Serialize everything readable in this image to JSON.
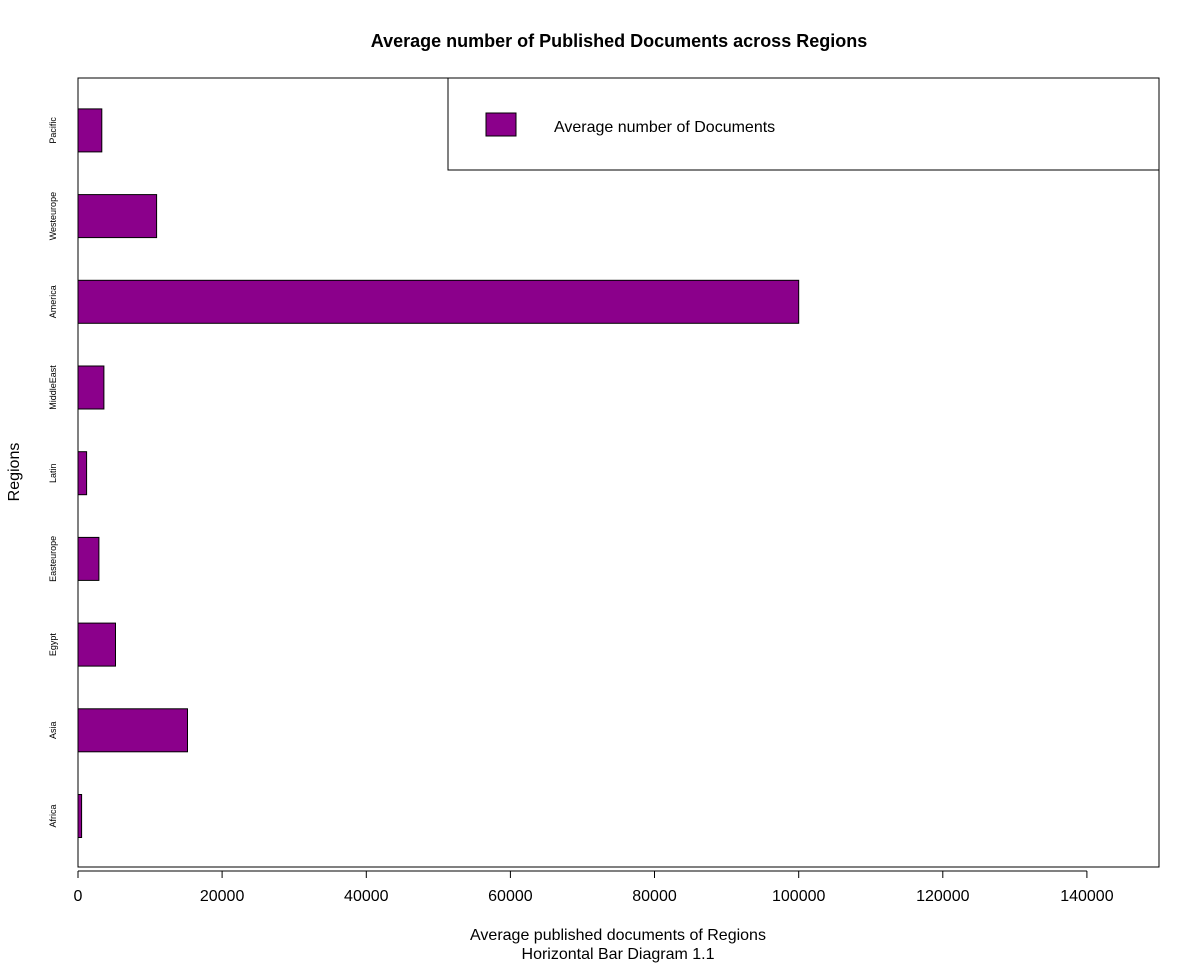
{
  "chart_data": {
    "type": "bar",
    "orientation": "horizontal",
    "title": "Average number of Published Documents across Regions",
    "xlabel": "Average published documents of Regions",
    "subtitle": "Horizontal Bar Diagram 1.1",
    "ylabel": "Regions",
    "categories": [
      "Africa",
      "Asia",
      "Egypt",
      "Easteurope",
      "Latin",
      "MiddleEast",
      "America",
      "Westeurope",
      "Pacific"
    ],
    "series": [
      {
        "name": "Average number of Documents",
        "values": [
          500,
          15200,
          5200,
          2900,
          1200,
          3600,
          100000,
          10900,
          3300
        ]
      }
    ],
    "xlim": [
      0,
      150000
    ],
    "xticks": [
      0,
      20000,
      40000,
      60000,
      80000,
      100000,
      120000,
      140000
    ],
    "xtick_labels": [
      "0",
      "20000",
      "40000",
      "60000",
      "80000",
      "100000",
      "120000",
      "140000"
    ],
    "bar_color": "#8B008B",
    "grid": false,
    "legend_position": "top-right"
  }
}
